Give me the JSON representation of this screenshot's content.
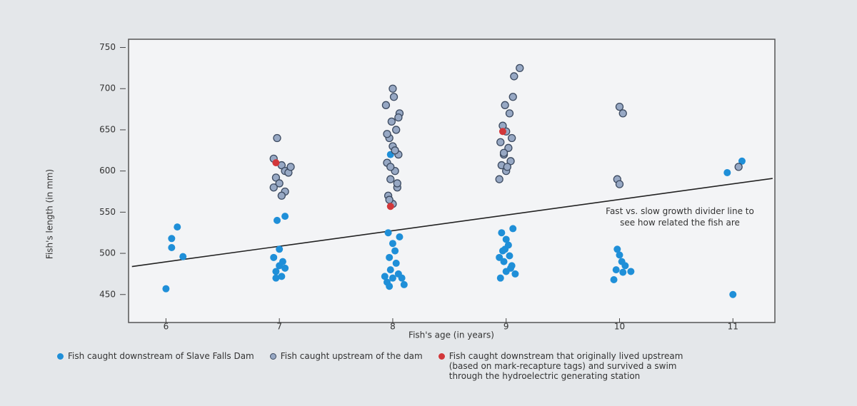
{
  "chart_data": {
    "type": "scatter",
    "x_label": "Fish's age (in years)",
    "y_label": "Fish's length (in mm)",
    "annotation": "Fast vs. slow growth divider line to see how related the fish are",
    "xlim": [
      5.67,
      11.37
    ],
    "ylim": [
      416,
      760
    ],
    "xticks": [
      6,
      7,
      8,
      9,
      10,
      11
    ],
    "yticks": [
      450,
      500,
      550,
      600,
      650,
      700,
      750
    ],
    "divider_line": {
      "x": [
        5.7,
        11.35
      ],
      "values": [
        484,
        591
      ]
    },
    "series": [
      {
        "name": "Fish caught downstream of Slave Falls Dam",
        "color": "#1f8fd8",
        "x": [
          6.0,
          6.05,
          6.05,
          6.1,
          6.15,
          6.97,
          7.0,
          7.03,
          6.95,
          7.05,
          7.0,
          6.98,
          7.05,
          6.97,
          7.02,
          7.95,
          8.0,
          8.05,
          7.98,
          8.03,
          7.97,
          8.02,
          8.0,
          7.96,
          8.06,
          8.08,
          7.93,
          8.1,
          7.97,
          8.02,
          7.98,
          8.95,
          9.0,
          9.05,
          8.98,
          9.03,
          8.97,
          9.02,
          9.0,
          8.96,
          9.06,
          9.08,
          8.94,
          9.04,
          8.99,
          9.98,
          10.0,
          10.02,
          9.97,
          10.03,
          9.95,
          10.05,
          10.1,
          11.0,
          10.95,
          11.08
        ],
        "values": [
          457,
          518,
          507,
          532,
          496,
          478,
          485,
          490,
          495,
          482,
          505,
          540,
          545,
          470,
          472,
          465,
          470,
          475,
          480,
          488,
          495,
          503,
          512,
          525,
          520,
          470,
          472,
          462,
          460,
          600,
          620,
          470,
          478,
          485,
          490,
          497,
          503,
          510,
          517,
          525,
          530,
          475,
          495,
          482,
          505,
          505,
          498,
          490,
          480,
          477,
          468,
          485,
          478,
          450,
          598,
          612
        ]
      },
      {
        "name": "Fish caught upstream of the dam",
        "color": "#97a8c4",
        "x": [
          6.98,
          6.95,
          7.02,
          7.05,
          6.97,
          7.0,
          7.05,
          7.08,
          6.95,
          7.02,
          7.1,
          8.0,
          7.96,
          8.04,
          7.98,
          8.02,
          7.95,
          8.05,
          8.0,
          7.97,
          8.03,
          7.99,
          8.06,
          7.94,
          8.01,
          8.0,
          7.97,
          8.04,
          7.98,
          8.02,
          7.95,
          8.05,
          9.0,
          8.96,
          9.04,
          8.98,
          9.02,
          8.95,
          9.05,
          9.0,
          8.97,
          9.03,
          8.99,
          9.06,
          9.07,
          9.12,
          8.94,
          9.01,
          8.98,
          10.0,
          10.03,
          9.98,
          10.0,
          11.05
        ],
        "values": [
          640,
          615,
          607,
          600,
          592,
          585,
          575,
          598,
          580,
          570,
          605,
          560,
          570,
          580,
          590,
          600,
          610,
          620,
          630,
          640,
          650,
          660,
          670,
          680,
          690,
          700,
          565,
          585,
          605,
          625,
          645,
          665,
          600,
          607,
          612,
          620,
          628,
          635,
          640,
          648,
          655,
          670,
          680,
          690,
          715,
          725,
          590,
          605,
          622,
          678,
          670,
          590,
          584,
          605
        ]
      },
      {
        "name": "Fish caught downstream that originally lived upstream (based on mark-recapture tags) and survived a swim through the hydroelectric generating station",
        "color": "#d2373a",
        "x": [
          6.97,
          7.98,
          8.97
        ],
        "values": [
          610,
          557,
          648
        ]
      }
    ]
  }
}
